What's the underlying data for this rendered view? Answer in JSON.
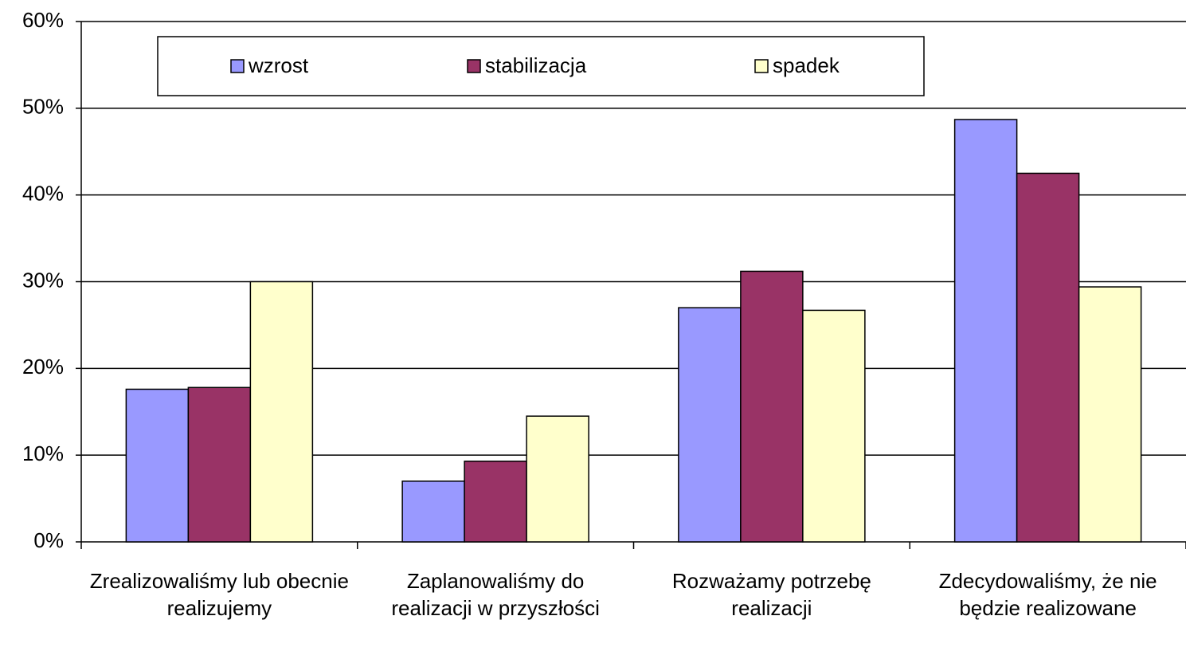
{
  "chart_data": {
    "type": "bar",
    "categories": [
      "Zrealizowaliśmy lub obecnie realizujemy",
      "Zaplanowaliśmy do realizacji w przyszłości",
      "Rozważamy potrzebę realizacji",
      "Zdecydowaliśmy, że nie będzie realizowane"
    ],
    "series": [
      {
        "name": "wzrost",
        "color": "#9999ff",
        "values": [
          17.6,
          7.0,
          27.0,
          48.7
        ]
      },
      {
        "name": "stabilizacja",
        "color": "#993366",
        "values": [
          17.8,
          9.3,
          31.2,
          42.5
        ]
      },
      {
        "name": "spadek",
        "color": "#ffffcc",
        "values": [
          30.0,
          14.5,
          26.7,
          29.4
        ]
      }
    ],
    "ylim": [
      0,
      60
    ],
    "yticks": [
      {
        "value": 0,
        "label": "0%"
      },
      {
        "value": 10,
        "label": "10%"
      },
      {
        "value": 20,
        "label": "20%"
      },
      {
        "value": 30,
        "label": "30%"
      },
      {
        "value": 40,
        "label": "40%"
      },
      {
        "value": 50,
        "label": "50%"
      },
      {
        "value": 60,
        "label": "60%"
      }
    ],
    "grid": true,
    "legend": "top"
  }
}
